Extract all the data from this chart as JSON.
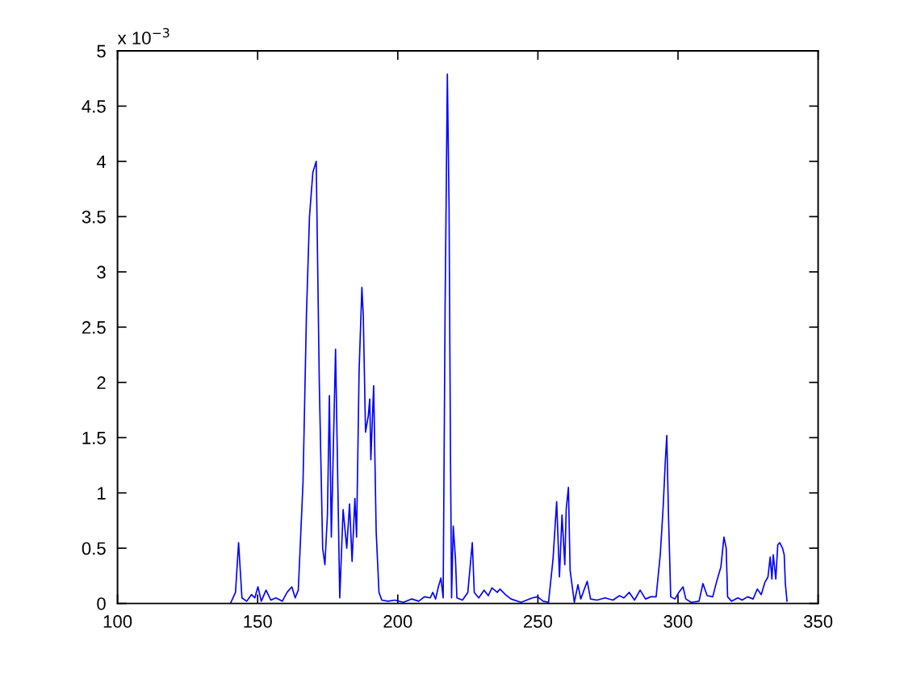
{
  "chart_data": {
    "type": "line",
    "annotations": [
      "x 10$^{−3}$"
    ],
    "series": [
      {
        "color": "#0000ff",
        "x": [
          140.3,
          142.1,
          143.2,
          144.4,
          146.1,
          147.8,
          149.0,
          150.1,
          151.3,
          153.0,
          154.7,
          156.5,
          158.8,
          160.5,
          162.2,
          163.4,
          164.5,
          166.2,
          167.4,
          168.5,
          169.7,
          170.9,
          172.0,
          173.2,
          174.0,
          174.9,
          175.6,
          176.3,
          177.8,
          179.3,
          180.5,
          181.8,
          182.8,
          183.7,
          184.7,
          185.3,
          186.2,
          187.2,
          187.7,
          188.5,
          189.5,
          190.0,
          190.4,
          191.4,
          192.3,
          193.3,
          194.3,
          196.5,
          199.0,
          202.0,
          205.0,
          207.5,
          209.5,
          211.6,
          212.5,
          213.5,
          214.5,
          215.4,
          216.2,
          216.9,
          217.7,
          218.3,
          218.8,
          219.2,
          219.8,
          220.6,
          221.1,
          223.1,
          225.0,
          226.6,
          227.3,
          228.9,
          230.8,
          232.3,
          233.6,
          235.5,
          236.5,
          238.4,
          240.4,
          244.0,
          248.0,
          249.9,
          251.9,
          253.8,
          255.4,
          256.7,
          257.7,
          258.6,
          259.6,
          260.1,
          260.9,
          261.5,
          263.0,
          264.3,
          265.3,
          267.6,
          268.8,
          271.1,
          274.0,
          276.8,
          279.1,
          280.7,
          282.6,
          284.5,
          286.5,
          288.4,
          290.3,
          292.2,
          293.7,
          294.7,
          295.5,
          296.0,
          296.6,
          297.4,
          298.9,
          300.3,
          301.8,
          302.8,
          304.7,
          307.5,
          308.9,
          310.4,
          312.4,
          313.7,
          315.3,
          316.4,
          317.2,
          317.7,
          319.1,
          321.4,
          322.9,
          324.8,
          326.8,
          328.3,
          329.7,
          331.0,
          332.1,
          332.9,
          333.5,
          334.0,
          334.9,
          335.6,
          336.3,
          337.3,
          337.9,
          338.3,
          338.9
        ],
        "values": [
          0,
          0.1,
          0.55,
          0.05,
          0.02,
          0.08,
          0.05,
          0.15,
          0.02,
          0.12,
          0.03,
          0.05,
          0.02,
          0.1,
          0.15,
          0.05,
          0.12,
          1.1,
          2.6,
          3.5,
          3.9,
          4.0,
          2.0,
          0.5,
          0.35,
          0.8,
          1.88,
          0.6,
          2.3,
          0.05,
          0.85,
          0.5,
          0.9,
          0.38,
          0.95,
          0.6,
          2.1,
          2.86,
          2.6,
          1.55,
          1.7,
          1.85,
          1.3,
          1.97,
          0.65,
          0.1,
          0.03,
          0.02,
          0.03,
          0.01,
          0.04,
          0.02,
          0.06,
          0.05,
          0.1,
          0.04,
          0.15,
          0.23,
          0.05,
          2.7,
          4.79,
          3.6,
          1.4,
          0.05,
          0.7,
          0.4,
          0.05,
          0.03,
          0.1,
          0.55,
          0.1,
          0.05,
          0.12,
          0.07,
          0.14,
          0.1,
          0.13,
          0.08,
          0.04,
          0.01,
          0.05,
          0.06,
          0.02,
          0.01,
          0.4,
          0.92,
          0.24,
          0.8,
          0.35,
          0.85,
          1.05,
          0.3,
          0.01,
          0.17,
          0.04,
          0.2,
          0.04,
          0.03,
          0.05,
          0.03,
          0.07,
          0.05,
          0.1,
          0.03,
          0.12,
          0.04,
          0.06,
          0.06,
          0.45,
          0.87,
          1.3,
          1.52,
          0.8,
          0.06,
          0.04,
          0.1,
          0.15,
          0.04,
          0.01,
          0.02,
          0.18,
          0.07,
          0.06,
          0.19,
          0.33,
          0.6,
          0.5,
          0.06,
          0.02,
          0.05,
          0.03,
          0.06,
          0.04,
          0.13,
          0.08,
          0.19,
          0.24,
          0.42,
          0.22,
          0.44,
          0.22,
          0.53,
          0.55,
          0.5,
          0.44,
          0.18,
          0.02
        ]
      }
    ],
    "xlim": [
      100,
      350
    ],
    "xticks": [
      100,
      150,
      200,
      250,
      300,
      350
    ],
    "ylim": [
      0,
      5
    ],
    "yticks": [
      0,
      0.5,
      1,
      1.5,
      2,
      2.5,
      3,
      3.5,
      4,
      4.5,
      5
    ],
    "line_style": "solid"
  }
}
